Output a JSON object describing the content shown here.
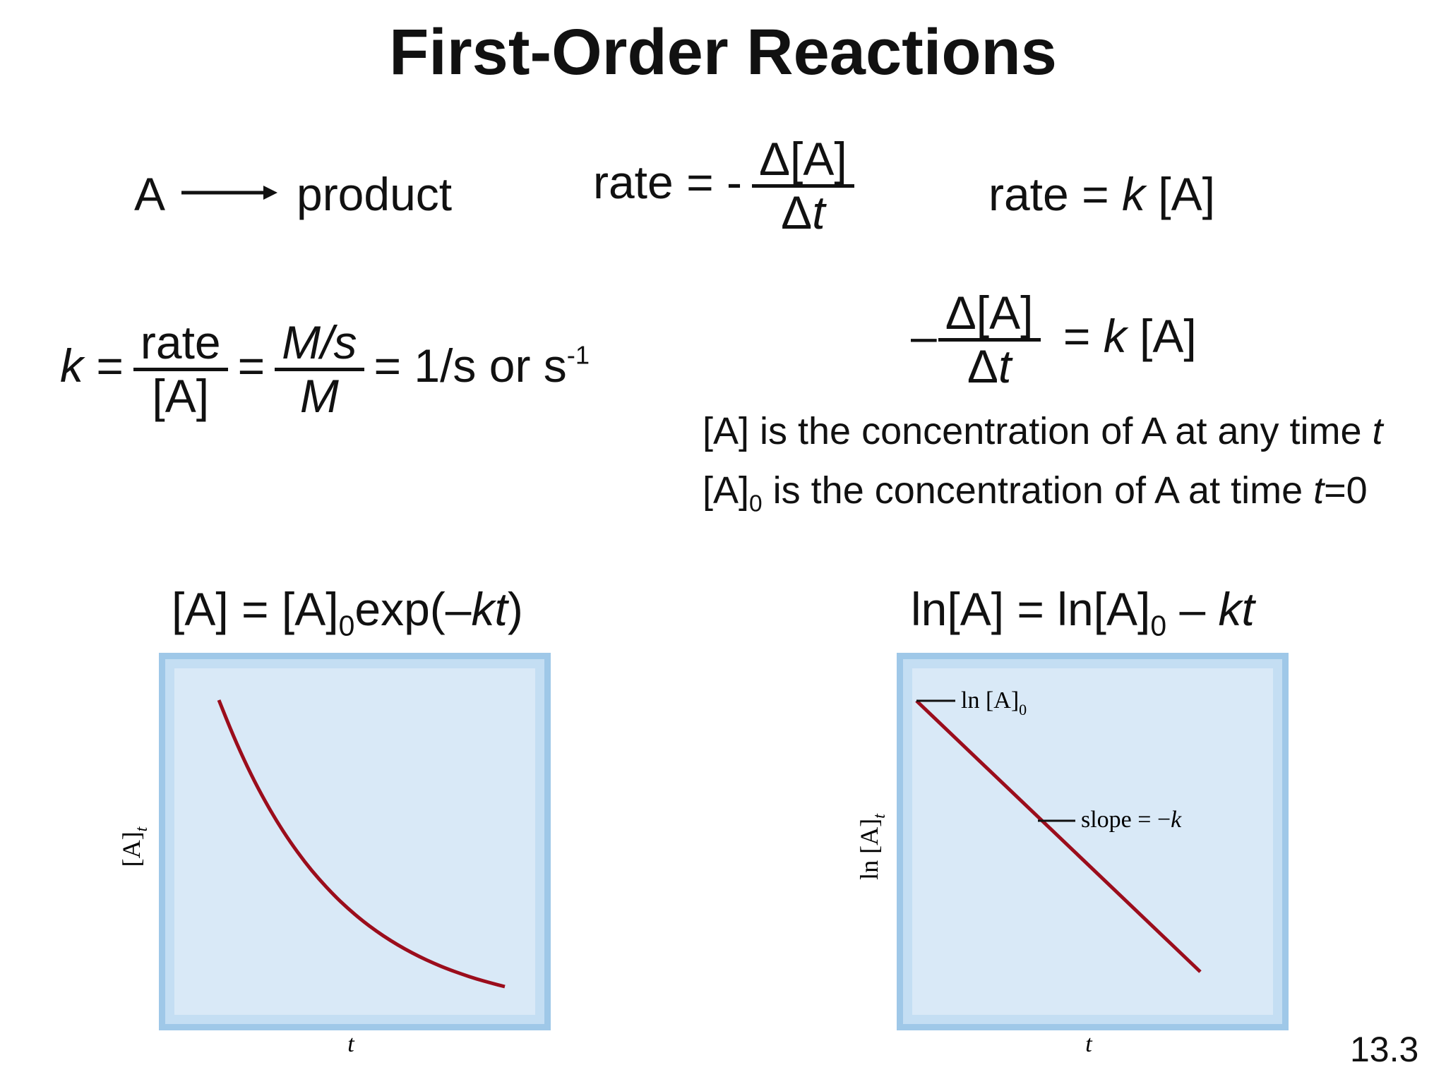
{
  "slide": {
    "title": "First-Order Reactions",
    "page_number": "13.3"
  },
  "row1": {
    "reactant": "A",
    "product": "product",
    "rate_def": {
      "lhs": "rate = -",
      "num": "Δ[A]",
      "den_delta": "Δ",
      "den_var": "t"
    },
    "rate_law": {
      "prefix": "rate = ",
      "k": "k",
      "suffix": " [A]"
    }
  },
  "row2": {
    "k_label": "k",
    "eq1": "=",
    "frac1_num": "rate",
    "frac1_den": "[A]",
    "eq2": "=",
    "frac2_num": "M/s",
    "frac2_den": "M",
    "result": "= 1/s or s",
    "result_exp": "-1",
    "diff": {
      "minus": "–",
      "num": "Δ[A]",
      "den_delta": "Δ",
      "den_var": "t",
      "rhs_prefix": " = ",
      "k": "k",
      "rhs_suffix": " [A]"
    }
  },
  "descriptions": {
    "line1_text": "[A] is the concentration of A at any time ",
    "line1_var": "t",
    "line2_base": "[A]",
    "line2_sub": "0",
    "line2_text": " is the concentration of A at time ",
    "line2_var": "t",
    "line2_end": "=0"
  },
  "equations": {
    "exp_left": "[A] = [A]",
    "exp_sub": "0",
    "exp_mid": "exp(–",
    "exp_var": "kt",
    "exp_end": ")",
    "ln_left": "ln[A] = ln[A]",
    "ln_sub": "0",
    "ln_mid": " – ",
    "ln_var": "kt"
  },
  "chart_data": [
    {
      "type": "line",
      "title": "",
      "xlabel": "t",
      "ylabel": "[A]",
      "ylabel_sub": "t",
      "grid": false,
      "series": [
        {
          "values_kind": "exponential decay",
          "k": 2.4,
          "t": [
            0,
            0.05,
            0.1,
            0.15,
            0.2,
            0.25,
            0.3,
            0.35,
            0.4,
            0.45,
            0.5,
            0.55,
            0.6,
            0.65,
            0.7,
            0.75,
            0.8,
            0.85,
            0.9,
            0.95,
            1.0
          ],
          "color": "#9b0d1c"
        }
      ],
      "frame_color": "#9fc8e8",
      "plot_bg": "#d9e9f7"
    },
    {
      "type": "line",
      "title": "",
      "xlabel": "t",
      "ylabel": "ln [A]",
      "ylabel_sub": "t",
      "grid": false,
      "series": [
        {
          "x": [
            0,
            1
          ],
          "y": [
            1,
            0
          ],
          "color": "#9b0d1c"
        }
      ],
      "annotations": [
        {
          "text": "ln [A]",
          "sub": "0"
        },
        {
          "text": "slope = −",
          "var": "k"
        }
      ],
      "frame_color": "#9fc8e8",
      "plot_bg": "#d9e9f7"
    }
  ]
}
